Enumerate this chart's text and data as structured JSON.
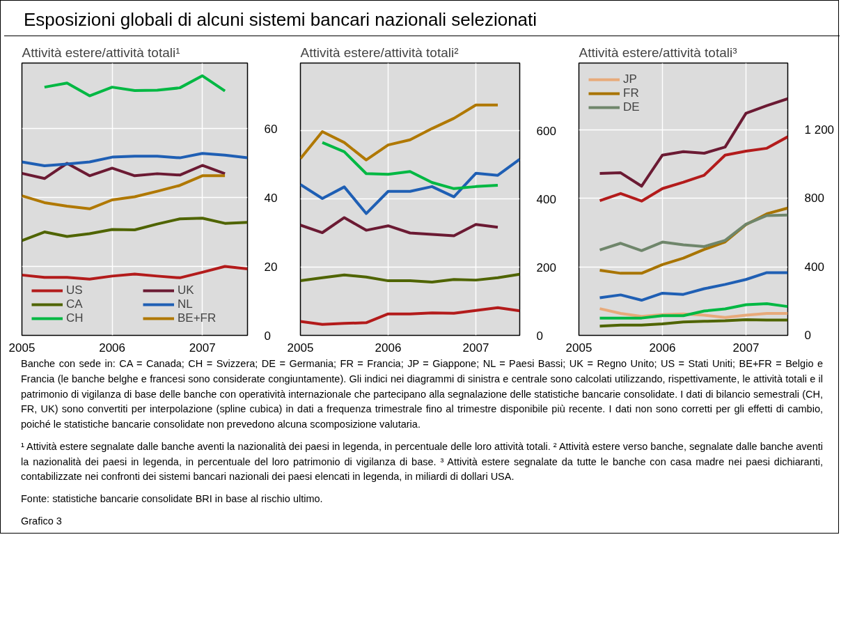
{
  "chart_data": [
    {
      "type": "line",
      "title": "Esposizioni globali di alcuni sistemi bancari nazionali selezionati",
      "subtitle": "Attività estere/attività totali¹",
      "x": [
        2005,
        2005.25,
        2005.5,
        2005.75,
        2006,
        2006.25,
        2006.5,
        2006.75,
        2007,
        2007.25,
        2007.5
      ],
      "xlim": [
        2005,
        2007.5
      ],
      "xticks": [
        2005,
        2006,
        2007
      ],
      "ylim": [
        0,
        79
      ],
      "yticks": [
        0,
        20,
        40,
        60
      ],
      "grid": true,
      "legend": "bottom left",
      "series": [
        {
          "name": "US",
          "color": "#b31b1b",
          "values": [
            17.5,
            16.8,
            16.8,
            16.3,
            17.2,
            17.8,
            17.2,
            16.7,
            18.3,
            20.0,
            19.3
          ]
        },
        {
          "name": "CA",
          "color": "#4f6400",
          "values": [
            27.5,
            30.0,
            28.7,
            29.5,
            30.7,
            30.6,
            32.3,
            33.8,
            34.0,
            32.5,
            32.8
          ]
        },
        {
          "name": "CH",
          "color": "#00b843",
          "values": [
            null,
            72.0,
            73.2,
            69.5,
            72.0,
            71.0,
            71.1,
            71.8,
            75.3,
            70.9,
            null
          ]
        },
        {
          "name": "UK",
          "color": "#6b1a33",
          "values": [
            47.0,
            45.5,
            49.9,
            46.3,
            48.5,
            46.3,
            46.9,
            46.5,
            49.3,
            46.9,
            null
          ]
        },
        {
          "name": "NL",
          "color": "#1f5fb4",
          "values": [
            50.3,
            49.2,
            49.7,
            50.3,
            51.7,
            52.0,
            52.0,
            51.5,
            52.8,
            52.3,
            51.5
          ]
        },
        {
          "name": "BE+FR",
          "color": "#b07800",
          "values": [
            40.5,
            38.5,
            37.5,
            36.7,
            39.3,
            40.2,
            41.8,
            43.5,
            46.3,
            46.3,
            null
          ]
        }
      ],
      "annotations": [
        "Banche con sede in: CA = Canada; CH = Svizzera; DE = Germania; FR = Francia; JP = Giappone; NL = Paesi Bassi; UK = Regno Unito; US = Stati Uniti; BE+FR = Belgio e Francia (le banche belghe e francesi sono considerate congiuntamente). Gli indici nei diagrammi di sinistra e centrale sono calcolati utilizzando, rispettivamente, le attività totali e il patrimonio di vigilanza di base delle banche con operatività internazionale che partecipano alla segnalazione delle statistiche bancarie consolidate. I dati di bilancio semestrali (CH, FR, UK) sono convertiti per interpolazione (spline cubica) in dati a frequenza trimestrale fino al trimestre disponibile più recente. I dati non sono corretti per gli effetti di cambio, poiché le statistiche bancarie consolidate non prevedono alcuna scomposizione valutaria.",
        "¹ Attività estere segnalate dalle banche aventi la nazionalità dei paesi in legenda, in percentuale delle loro attività totali.  ² Attività estere verso banche, segnalate dalle banche aventi la nazionalità dei paesi in legenda, in percentuale del loro patrimonio di vigilanza di base.  ³ Attività estere segnalate da tutte le banche con casa madre nei paesi dichiaranti, contabilizzate nei confronti dei sistemi bancari nazionali dei paesi elencati in legenda, in miliardi di dollari USA.",
        "Fonte: statistiche bancarie consolidate BRI in base al rischio ultimo.",
        "Grafico 3"
      ]
    },
    {
      "type": "line",
      "subtitle": "Attività estere/attività totali²",
      "x": [
        2005,
        2005.25,
        2005.5,
        2005.75,
        2006,
        2006.25,
        2006.5,
        2006.75,
        2007,
        2007.25,
        2007.5
      ],
      "xlim": [
        2005,
        2007.5
      ],
      "xticks": [
        2005,
        2006,
        2007
      ],
      "ylim": [
        0,
        798
      ],
      "yticks": [
        0,
        200,
        400,
        600
      ],
      "grid": true,
      "series": [
        {
          "color": "#b31b1b",
          "values": [
            41,
            32,
            35,
            37,
            63,
            63,
            66,
            65,
            73,
            81,
            72
          ]
        },
        {
          "color": "#4f6400",
          "values": [
            160,
            169,
            177,
            171,
            160,
            160,
            156,
            164,
            162,
            169,
            179
          ]
        },
        {
          "color": "#6b1a33",
          "values": [
            323,
            301,
            345,
            308,
            321,
            300,
            296,
            292,
            325,
            317,
            null
          ]
        },
        {
          "color": "#1f5fb4",
          "values": [
            442,
            401,
            435,
            357,
            422,
            422,
            436,
            406,
            475,
            469,
            516
          ]
        },
        {
          "color": "#00b843",
          "values": [
            null,
            565,
            538,
            474,
            472,
            480,
            448,
            430,
            436,
            440,
            null
          ]
        },
        {
          "color": "#b07800",
          "values": [
            518,
            597,
            565,
            514,
            558,
            573,
            606,
            636,
            675,
            675,
            null
          ]
        }
      ]
    },
    {
      "type": "line",
      "subtitle": "Attività estere/attività totali³",
      "x": [
        2005.25,
        2005.5,
        2005.75,
        2006,
        2006.25,
        2006.5,
        2006.75,
        2007,
        2007.25,
        2007.5
      ],
      "xlim": [
        2005,
        2007.5
      ],
      "xticks": [
        2005,
        2006,
        2007
      ],
      "ylim": [
        0,
        1588
      ],
      "yticks": [
        0,
        400,
        800,
        {
          "value": 1200,
          "label": "1 200"
        }
      ],
      "grid": true,
      "legend": "top left",
      "series": [
        {
          "color": "#e8aa7a",
          "name": "JP",
          "values": [
            156,
            128,
            111,
            121,
            125,
            118,
            105,
            118,
            128,
            128
          ]
        },
        {
          "color": "#a87400",
          "name": "FR",
          "values": [
            380,
            362,
            362,
            413,
            450,
            501,
            545,
            646,
            709,
            742
          ]
        },
        {
          "color": "#6f866b",
          "name": "DE",
          "values": [
            498,
            537,
            494,
            544,
            528,
            518,
            554,
            648,
            699,
            702
          ]
        },
        {
          "color": "#6b1a33",
          "values": [
            944,
            948,
            870,
            1051,
            1071,
            1062,
            1098,
            1295,
            1340,
            1380
          ]
        },
        {
          "color": "#b31b1b",
          "values": [
            785,
            827,
            783,
            856,
            893,
            934,
            1051,
            1074,
            1091,
            1158
          ]
        },
        {
          "color": "#1f5fb4",
          "values": [
            219,
            236,
            205,
            246,
            239,
            272,
            297,
            326,
            366,
            366
          ]
        },
        {
          "color": "#00b843",
          "values": [
            101,
            101,
            101,
            115,
            115,
            142,
            154,
            179,
            185,
            168
          ]
        },
        {
          "color": "#4f6400",
          "values": [
            54,
            60,
            60,
            67,
            78,
            82,
            85,
            91,
            89,
            89
          ]
        }
      ]
    }
  ]
}
